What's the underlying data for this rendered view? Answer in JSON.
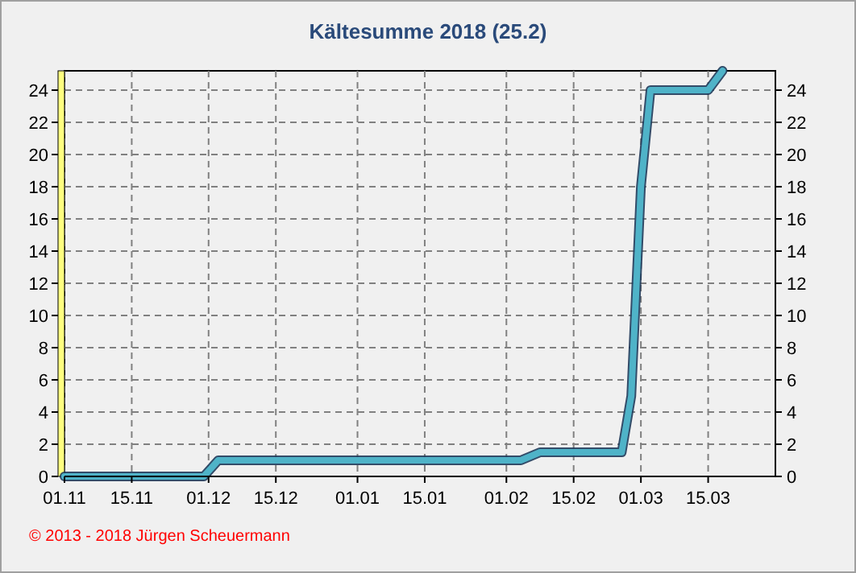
{
  "chart_data": {
    "type": "line",
    "title": "Kältesumme  2018  (25.2)",
    "x": [
      "2017-11-01",
      "2017-11-30",
      "2017-12-03",
      "2018-02-04",
      "2018-02-08",
      "2018-02-25",
      "2018-02-27",
      "2018-03-01",
      "2018-03-03",
      "2018-03-15",
      "2018-03-18"
    ],
    "series": [
      {
        "color": "#4fb3c8",
        "values": [
          0,
          0,
          1,
          1,
          1.5,
          1.5,
          5,
          18,
          24,
          24,
          25.2
        ]
      }
    ],
    "xlim": [
      "2017-11-01",
      "2018-03-29"
    ],
    "xticks": [
      {
        "value": "2017-11-01",
        "label": "01.11"
      },
      {
        "value": "2017-11-15",
        "label": "15.11"
      },
      {
        "value": "2017-12-01",
        "label": "01.12"
      },
      {
        "value": "2017-12-15",
        "label": "15.12"
      },
      {
        "value": "2018-01-01",
        "label": "01.01"
      },
      {
        "value": "2018-01-15",
        "label": "15.01"
      },
      {
        "value": "2018-02-01",
        "label": "01.02"
      },
      {
        "value": "2018-02-15",
        "label": "15.02"
      },
      {
        "value": "2018-03-01",
        "label": "01.03"
      },
      {
        "value": "2018-03-15",
        "label": "15.03"
      }
    ],
    "ylim": [
      0,
      25.2
    ],
    "yticks": [
      0,
      2,
      4,
      6,
      8,
      10,
      12,
      14,
      16,
      18,
      20,
      22,
      24
    ],
    "y2lim": [
      0,
      25.2
    ],
    "y2ticks": [
      0,
      2,
      4,
      6,
      8,
      10,
      12,
      14,
      16,
      18,
      20,
      22,
      24
    ],
    "grid": true,
    "line_style": "solid",
    "marker": "none",
    "annotations": [
      "© 2013 - 2018 Jürgen Scheuermann"
    ]
  }
}
